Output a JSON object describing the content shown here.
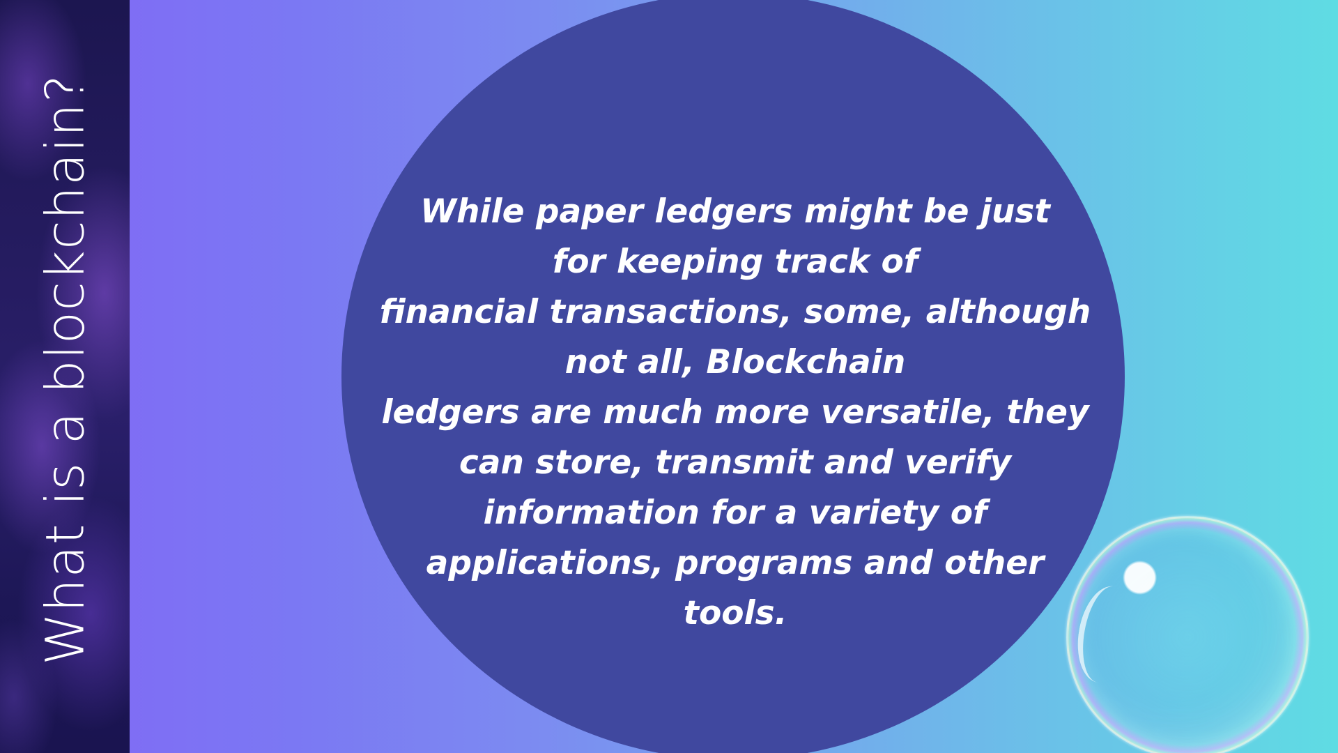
{
  "slide": {
    "side_title": "What is a blockchain?",
    "body_lines": [
      "While paper ledgers might be just",
      "for keeping track of",
      "financial transactions, some, although",
      "not all, Blockchain",
      "ledgers are much more versatile, they",
      "can store, transmit and verify",
      "information for a variety of",
      "applications, programs and other",
      "tools."
    ]
  },
  "colors": {
    "circle": "#40489f",
    "gradient_left": "#8266f6",
    "gradient_right": "#5fdce3",
    "strip": "#1c1650",
    "text": "#ffffff"
  },
  "decor": {
    "bubble": "soap-bubble-image",
    "strip_pattern": "purple-smoke-image"
  }
}
